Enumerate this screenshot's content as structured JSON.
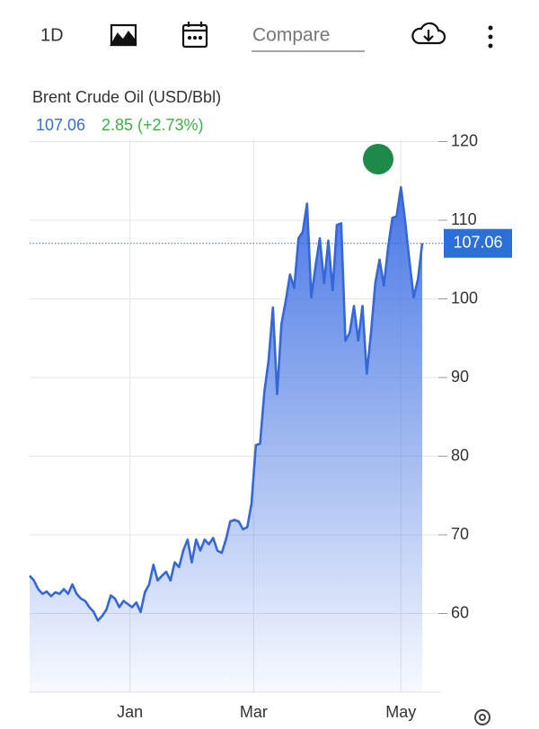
{
  "toolbar": {
    "interval": "1D",
    "compare": "Compare"
  },
  "chart_data": {
    "type": "area",
    "title": "Brent Crude Oil (USD/Bbl)",
    "change": 2.85,
    "change_percent": "(+2.73%)",
    "color": "#3567d6",
    "values": [
      64.8,
      64.2,
      63.1,
      62.5,
      62.8,
      62.2,
      62.7,
      62.5,
      63.1,
      62.5,
      63.7,
      62.5,
      61.9,
      61.6,
      60.8,
      60.2,
      59.1,
      59.7,
      60.5,
      62.3,
      61.9,
      60.8,
      61.6,
      61.2,
      60.8,
      61.4,
      60.2,
      62.7,
      63.7,
      66.2,
      64.2,
      64.8,
      65.3,
      64.2,
      66.5,
      65.9,
      68.0,
      69.4,
      66.5,
      69.4,
      68.0,
      69.4,
      68.8,
      69.6,
      68.0,
      67.7,
      69.4,
      71.7,
      71.9,
      71.7,
      70.7,
      71.0,
      74.0,
      81.4,
      81.6,
      88.2,
      92.2,
      98.9,
      87.9,
      96.8,
      99.7,
      103.1,
      101.4,
      107.7,
      108.5,
      112.1,
      100.2,
      104.2,
      107.7,
      102.0,
      107.4,
      101.1,
      109.4,
      109.6,
      94.7,
      95.7,
      99.1,
      94.7,
      99.1,
      90.5,
      95.7,
      102.0,
      105.0,
      101.7,
      106.5,
      110.3,
      110.5,
      114.2,
      109.9,
      104.8,
      100.2,
      102.5,
      107.06
    ],
    "xlim": [
      0,
      92
    ],
    "xticks": [
      {
        "value": 23.5,
        "label": "Jan"
      },
      {
        "value": 52.5,
        "label": "Mar"
      },
      {
        "value": 87,
        "label": "May"
      }
    ],
    "ylim": [
      50,
      122
    ],
    "yticks": [
      60,
      70,
      80,
      90,
      100,
      110,
      120
    ],
    "grid": true
  }
}
